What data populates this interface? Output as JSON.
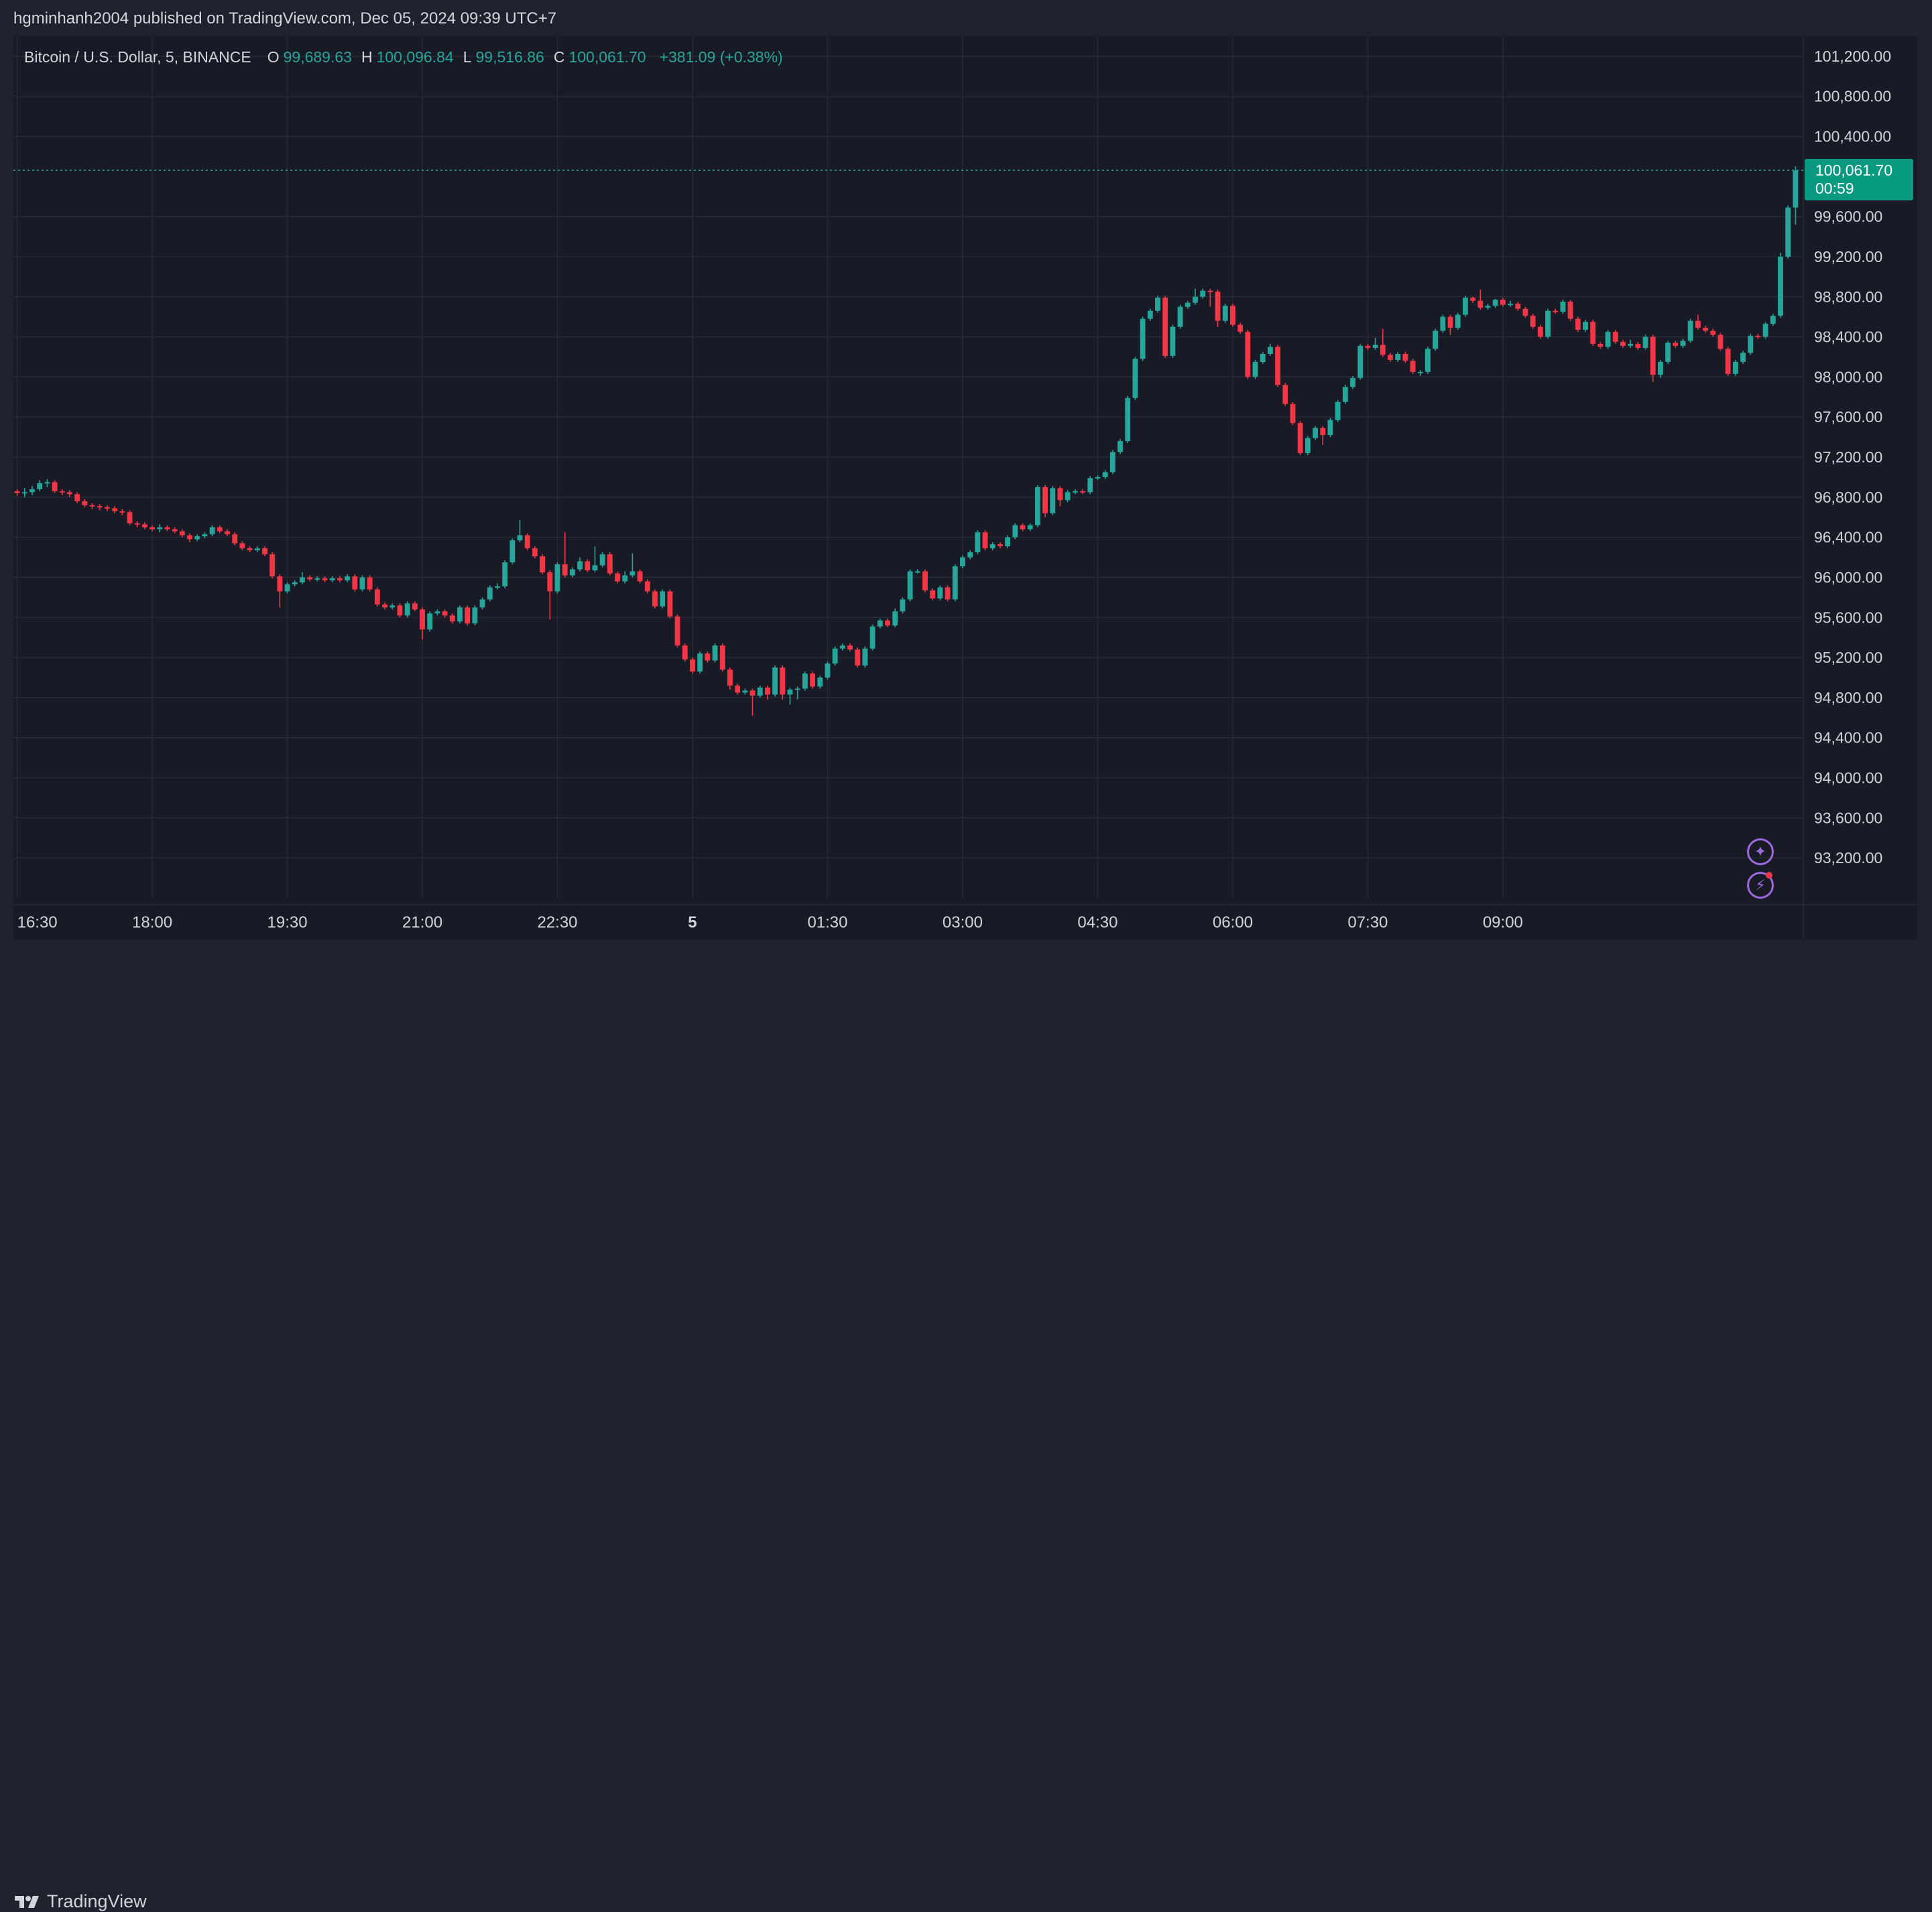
{
  "header": {
    "publish_line": "hgminhanh2004 published on TradingView.com, Dec 05, 2024 09:39 UTC+7"
  },
  "legend": {
    "symbol": "Bitcoin / U.S. Dollar, 5, BINANCE",
    "open_label": "O",
    "open": "99,689.63",
    "high_label": "H",
    "high": "100,096.84",
    "low_label": "L",
    "low": "99,516.86",
    "close_label": "C",
    "close": "100,061.70",
    "change": "+381.09 (+0.38%)"
  },
  "price_tag": {
    "price": "100,061.70",
    "countdown": "00:59"
  },
  "footer": {
    "brand": "TradingView"
  },
  "icons": {
    "assistant": "sparkle-icon",
    "alerts": "lightning-icon",
    "logo": "tradingview-logo-icon"
  },
  "colors": {
    "up": "#26a69a",
    "down": "#f23645",
    "background": "#181b25",
    "grid": "#262a35",
    "text": "#d1d4dc",
    "price_tag": "#089981",
    "accent": "#9c6ade"
  },
  "chart_data": {
    "type": "candlestick",
    "symbol": "Bitcoin / U.S. Dollar, 5, BINANCE",
    "interval": "5",
    "ylim": [
      92800,
      101400
    ],
    "y_ticks": [
      "101,200.00",
      "100,800.00",
      "100,400.00",
      "99,600.00",
      "99,200.00",
      "98,800.00",
      "98,400.00",
      "98,000.00",
      "97,600.00",
      "97,200.00",
      "96,800.00",
      "96,400.00",
      "96,000.00",
      "95,600.00",
      "95,200.00",
      "94,800.00",
      "94,400.00",
      "94,000.00",
      "93,600.00",
      "93,200.00"
    ],
    "x_ticks": [
      "16:30",
      "18:00",
      "19:30",
      "21:00",
      "22:30",
      "5",
      "01:30",
      "03:00",
      "04:30",
      "06:00",
      "07:30",
      "09:00"
    ],
    "last_price": 100061.7,
    "candles": [
      [
        96860,
        96840,
        96880,
        96810
      ],
      [
        96840,
        96850,
        96890,
        96800
      ],
      [
        96850,
        96880,
        96910,
        96820
      ],
      [
        96880,
        96940,
        96970,
        96860
      ],
      [
        96940,
        96950,
        96980,
        96900
      ],
      [
        96950,
        96860,
        96970,
        96840
      ],
      [
        96860,
        96850,
        96880,
        96820
      ],
      [
        96850,
        96830,
        96870,
        96800
      ],
      [
        96830,
        96760,
        96850,
        96740
      ],
      [
        96760,
        96720,
        96780,
        96700
      ],
      [
        96720,
        96710,
        96740,
        96680
      ],
      [
        96710,
        96700,
        96730,
        96670
      ],
      [
        96700,
        96690,
        96720,
        96660
      ],
      [
        96690,
        96660,
        96710,
        96640
      ],
      [
        96660,
        96650,
        96680,
        96620
      ],
      [
        96650,
        96540,
        96670,
        96520
      ],
      [
        96540,
        96530,
        96560,
        96500
      ],
      [
        96530,
        96500,
        96550,
        96480
      ],
      [
        96500,
        96480,
        96520,
        96460
      ],
      [
        96480,
        96500,
        96530,
        96450
      ],
      [
        96500,
        96480,
        96520,
        96460
      ],
      [
        96480,
        96460,
        96500,
        96440
      ],
      [
        96460,
        96420,
        96480,
        96400
      ],
      [
        96420,
        96380,
        96440,
        96350
      ],
      [
        96380,
        96410,
        96430,
        96360
      ],
      [
        96410,
        96430,
        96450,
        96390
      ],
      [
        96430,
        96500,
        96520,
        96410
      ],
      [
        96500,
        96460,
        96520,
        96440
      ],
      [
        96460,
        96430,
        96480,
        96410
      ],
      [
        96430,
        96340,
        96450,
        96320
      ],
      [
        96340,
        96290,
        96360,
        96270
      ],
      [
        96290,
        96270,
        96310,
        96250
      ],
      [
        96270,
        96290,
        96310,
        96250
      ],
      [
        96290,
        96230,
        96310,
        96210
      ],
      [
        96230,
        96010,
        96250,
        95990
      ],
      [
        96010,
        95860,
        96030,
        95700
      ],
      [
        95860,
        95930,
        95950,
        95840
      ],
      [
        95930,
        95950,
        95970,
        95910
      ],
      [
        95950,
        96000,
        96050,
        95930
      ],
      [
        96000,
        95980,
        96020,
        95960
      ],
      [
        95980,
        95990,
        96010,
        95960
      ],
      [
        95990,
        95970,
        96010,
        95950
      ],
      [
        95970,
        95990,
        96010,
        95950
      ],
      [
        95990,
        95970,
        96010,
        95950
      ],
      [
        95970,
        96010,
        96030,
        95950
      ],
      [
        96010,
        95880,
        96030,
        95860
      ],
      [
        95880,
        96000,
        96020,
        95860
      ],
      [
        96000,
        95880,
        96020,
        95860
      ],
      [
        95880,
        95730,
        95900,
        95710
      ],
      [
        95730,
        95700,
        95750,
        95680
      ],
      [
        95700,
        95720,
        95740,
        95680
      ],
      [
        95720,
        95620,
        95740,
        95600
      ],
      [
        95620,
        95740,
        95760,
        95600
      ],
      [
        95740,
        95680,
        95760,
        95660
      ],
      [
        95680,
        95480,
        95700,
        95380
      ],
      [
        95480,
        95640,
        95660,
        95460
      ],
      [
        95640,
        95660,
        95680,
        95620
      ],
      [
        95660,
        95620,
        95680,
        95600
      ],
      [
        95620,
        95560,
        95640,
        95540
      ],
      [
        95560,
        95700,
        95720,
        95540
      ],
      [
        95700,
        95540,
        95720,
        95520
      ],
      [
        95540,
        95700,
        95720,
        95520
      ],
      [
        95700,
        95780,
        95800,
        95680
      ],
      [
        95780,
        95900,
        95920,
        95760
      ],
      [
        95900,
        95910,
        95940,
        95880
      ],
      [
        95910,
        96150,
        96170,
        95890
      ],
      [
        96150,
        96370,
        96390,
        96130
      ],
      [
        96370,
        96420,
        96570,
        96350
      ],
      [
        96420,
        96290,
        96440,
        96270
      ],
      [
        96290,
        96210,
        96310,
        96190
      ],
      [
        96210,
        96050,
        96230,
        96030
      ],
      [
        96050,
        95860,
        96070,
        95580
      ],
      [
        95860,
        96130,
        96150,
        95840
      ],
      [
        96130,
        96020,
        96450,
        96000
      ],
      [
        96020,
        96080,
        96100,
        96000
      ],
      [
        96080,
        96160,
        96200,
        96060
      ],
      [
        96160,
        96070,
        96180,
        96050
      ],
      [
        96070,
        96120,
        96310,
        96050
      ],
      [
        96120,
        96230,
        96250,
        96100
      ],
      [
        96230,
        96040,
        96250,
        96020
      ],
      [
        96040,
        95960,
        96060,
        95940
      ],
      [
        95960,
        96020,
        96060,
        95940
      ],
      [
        96020,
        96060,
        96240,
        96000
      ],
      [
        96060,
        95960,
        96080,
        95940
      ],
      [
        95960,
        95860,
        95980,
        95840
      ],
      [
        95860,
        95710,
        95880,
        95690
      ],
      [
        95710,
        95860,
        95880,
        95690
      ],
      [
        95860,
        95610,
        95880,
        95590
      ],
      [
        95610,
        95320,
        95630,
        95300
      ],
      [
        95320,
        95180,
        95340,
        95160
      ],
      [
        95180,
        95060,
        95200,
        95040
      ],
      [
        95060,
        95240,
        95260,
        95040
      ],
      [
        95240,
        95170,
        95260,
        95150
      ],
      [
        95170,
        95320,
        95340,
        95150
      ],
      [
        95320,
        95080,
        95340,
        95060
      ],
      [
        95080,
        94920,
        95100,
        94880
      ],
      [
        94920,
        94850,
        94940,
        94830
      ],
      [
        94850,
        94870,
        94890,
        94830
      ],
      [
        94870,
        94820,
        94890,
        94620
      ],
      [
        94820,
        94900,
        94920,
        94800
      ],
      [
        94900,
        94830,
        94920,
        94780
      ],
      [
        94830,
        95100,
        95120,
        94810
      ],
      [
        95100,
        94830,
        95120,
        94780
      ],
      [
        94830,
        94880,
        94900,
        94730
      ],
      [
        94880,
        94890,
        94910,
        94780
      ],
      [
        94890,
        95040,
        95060,
        94870
      ],
      [
        95040,
        94910,
        95060,
        94890
      ],
      [
        94910,
        95000,
        95020,
        94890
      ],
      [
        95000,
        95140,
        95160,
        94980
      ],
      [
        95140,
        95290,
        95310,
        95120
      ],
      [
        95290,
        95320,
        95340,
        95270
      ],
      [
        95320,
        95280,
        95340,
        95260
      ],
      [
        95280,
        95120,
        95300,
        95100
      ],
      [
        95120,
        95290,
        95310,
        95100
      ],
      [
        95290,
        95510,
        95530,
        95270
      ],
      [
        95510,
        95570,
        95590,
        95490
      ],
      [
        95570,
        95520,
        95590,
        95500
      ],
      [
        95520,
        95660,
        95690,
        95500
      ],
      [
        95660,
        95780,
        95800,
        95640
      ],
      [
        95780,
        96060,
        96080,
        95760
      ],
      [
        96060,
        96060,
        96080,
        96040
      ],
      [
        96060,
        95870,
        96080,
        95850
      ],
      [
        95870,
        95790,
        95890,
        95770
      ],
      [
        95790,
        95900,
        95920,
        95770
      ],
      [
        95900,
        95780,
        95920,
        95760
      ],
      [
        95780,
        96110,
        96130,
        95760
      ],
      [
        96110,
        96200,
        96220,
        96090
      ],
      [
        96200,
        96250,
        96270,
        96180
      ],
      [
        96250,
        96450,
        96470,
        96230
      ],
      [
        96450,
        96290,
        96470,
        96270
      ],
      [
        96290,
        96330,
        96350,
        96270
      ],
      [
        96330,
        96310,
        96350,
        96290
      ],
      [
        96310,
        96400,
        96420,
        96290
      ],
      [
        96400,
        96520,
        96540,
        96380
      ],
      [
        96520,
        96480,
        96540,
        96460
      ],
      [
        96480,
        96520,
        96540,
        96460
      ],
      [
        96520,
        96900,
        96920,
        96500
      ],
      [
        96900,
        96640,
        96920,
        96600
      ],
      [
        96640,
        96890,
        96910,
        96620
      ],
      [
        96890,
        96770,
        96910,
        96710
      ],
      [
        96770,
        96850,
        96870,
        96750
      ],
      [
        96850,
        96860,
        96880,
        96830
      ],
      [
        96860,
        96850,
        96880,
        96830
      ],
      [
        96850,
        96990,
        97010,
        96830
      ],
      [
        96990,
        97000,
        97020,
        96970
      ],
      [
        97000,
        97050,
        97070,
        96980
      ],
      [
        97050,
        97250,
        97270,
        97030
      ],
      [
        97250,
        97360,
        97380,
        97230
      ],
      [
        97360,
        97790,
        97810,
        97340
      ],
      [
        97790,
        98180,
        98200,
        97770
      ],
      [
        98180,
        98580,
        98600,
        98160
      ],
      [
        98580,
        98660,
        98680,
        98560
      ],
      [
        98660,
        98790,
        98810,
        98640
      ],
      [
        98790,
        98210,
        98810,
        98190
      ],
      [
        98210,
        98500,
        98520,
        98190
      ],
      [
        98500,
        98700,
        98720,
        98480
      ],
      [
        98700,
        98740,
        98760,
        98680
      ],
      [
        98740,
        98800,
        98880,
        98720
      ],
      [
        98800,
        98860,
        98880,
        98780
      ],
      [
        98860,
        98850,
        98880,
        98700
      ],
      [
        98850,
        98560,
        98870,
        98500
      ],
      [
        98560,
        98710,
        98730,
        98540
      ],
      [
        98710,
        98520,
        98730,
        98500
      ],
      [
        98520,
        98450,
        98540,
        98430
      ],
      [
        98450,
        98000,
        98470,
        97980
      ],
      [
        98000,
        98150,
        98170,
        97980
      ],
      [
        98150,
        98230,
        98250,
        98130
      ],
      [
        98230,
        98300,
        98330,
        98210
      ],
      [
        98300,
        97920,
        98320,
        97900
      ],
      [
        97920,
        97730,
        97940,
        97710
      ],
      [
        97730,
        97540,
        97750,
        97520
      ],
      [
        97540,
        97240,
        97560,
        97220
      ],
      [
        97240,
        97390,
        97410,
        97220
      ],
      [
        97390,
        97490,
        97510,
        97370
      ],
      [
        97490,
        97420,
        97510,
        97320
      ],
      [
        97420,
        97570,
        97590,
        97400
      ],
      [
        97570,
        97750,
        97770,
        97550
      ],
      [
        97750,
        97900,
        97920,
        97730
      ],
      [
        97900,
        97990,
        98010,
        97880
      ],
      [
        97990,
        98310,
        98330,
        97970
      ],
      [
        98310,
        98290,
        98330,
        98270
      ],
      [
        98290,
        98320,
        98390,
        98270
      ],
      [
        98320,
        98220,
        98480,
        98200
      ],
      [
        98220,
        98170,
        98240,
        98150
      ],
      [
        98170,
        98230,
        98250,
        98150
      ],
      [
        98230,
        98160,
        98250,
        98140
      ],
      [
        98160,
        98050,
        98180,
        98030
      ],
      [
        98050,
        98050,
        98070,
        98010
      ],
      [
        98050,
        98280,
        98300,
        98030
      ],
      [
        98280,
        98460,
        98480,
        98260
      ],
      [
        98460,
        98600,
        98620,
        98440
      ],
      [
        98600,
        98490,
        98620,
        98420
      ],
      [
        98490,
        98620,
        98640,
        98470
      ],
      [
        98620,
        98790,
        98810,
        98600
      ],
      [
        98790,
        98760,
        98800,
        98740
      ],
      [
        98760,
        98690,
        98870,
        98670
      ],
      [
        98690,
        98710,
        98730,
        98670
      ],
      [
        98710,
        98770,
        98780,
        98690
      ],
      [
        98770,
        98720,
        98790,
        98700
      ],
      [
        98720,
        98730,
        98760,
        98700
      ],
      [
        98730,
        98680,
        98750,
        98660
      ],
      [
        98680,
        98610,
        98700,
        98590
      ],
      [
        98610,
        98500,
        98630,
        98480
      ],
      [
        98500,
        98400,
        98520,
        98380
      ],
      [
        98400,
        98660,
        98680,
        98380
      ],
      [
        98660,
        98650,
        98680,
        98630
      ],
      [
        98650,
        98750,
        98770,
        98630
      ],
      [
        98750,
        98580,
        98770,
        98560
      ],
      [
        98580,
        98470,
        98600,
        98450
      ],
      [
        98470,
        98550,
        98570,
        98450
      ],
      [
        98550,
        98330,
        98570,
        98310
      ],
      [
        98330,
        98300,
        98350,
        98280
      ],
      [
        98300,
        98450,
        98470,
        98280
      ],
      [
        98450,
        98350,
        98470,
        98330
      ],
      [
        98350,
        98310,
        98370,
        98290
      ],
      [
        98310,
        98330,
        98370,
        98290
      ],
      [
        98330,
        98290,
        98350,
        98270
      ],
      [
        98290,
        98400,
        98420,
        98270
      ],
      [
        98400,
        98020,
        98420,
        97950
      ],
      [
        98020,
        98150,
        98170,
        97990
      ],
      [
        98150,
        98340,
        98360,
        98130
      ],
      [
        98340,
        98310,
        98360,
        98290
      ],
      [
        98310,
        98360,
        98380,
        98290
      ],
      [
        98360,
        98560,
        98580,
        98340
      ],
      [
        98560,
        98490,
        98620,
        98470
      ],
      [
        98490,
        98460,
        98510,
        98440
      ],
      [
        98460,
        98420,
        98480,
        98400
      ],
      [
        98420,
        98280,
        98440,
        98260
      ],
      [
        98280,
        98030,
        98300,
        98010
      ],
      [
        98030,
        98150,
        98170,
        98010
      ],
      [
        98150,
        98240,
        98260,
        98130
      ],
      [
        98240,
        98410,
        98430,
        98220
      ],
      [
        98410,
        98400,
        98430,
        98380
      ],
      [
        98400,
        98530,
        98550,
        98380
      ],
      [
        98530,
        98610,
        98630,
        98510
      ],
      [
        98610,
        99200,
        99240,
        98590
      ],
      [
        99200,
        99690,
        99710,
        99180
      ],
      [
        99690,
        100060,
        100100,
        99520
      ]
    ]
  }
}
